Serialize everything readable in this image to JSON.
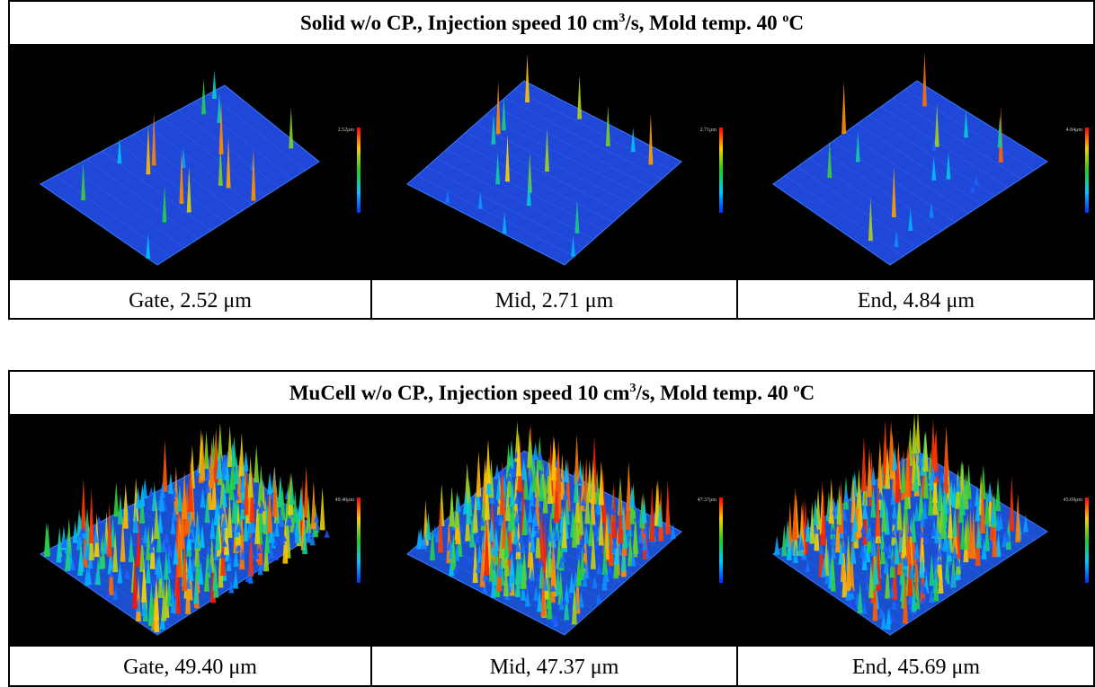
{
  "panels": [
    {
      "title": [
        "Solid w/o CP., Injection speed 10 cm",
        "3",
        "/s, Mold temp. 40  ",
        "o",
        "C"
      ],
      "images": [
        {
          "scale_label": "2.52μm",
          "caption": "Gate, 2.52 μm"
        },
        {
          "scale_label": "2.71μm",
          "caption": "Mid, 2.71 μm"
        },
        {
          "scale_label": "4.84μm",
          "caption": "End, 4.84 μm"
        }
      ]
    },
    {
      "title": [
        "MuCell w/o CP., Injection speed 10 cm",
        "3",
        "/s, Mold temp. 40 ",
        "o",
        "C"
      ],
      "images": [
        {
          "scale_label": "49.40μm",
          "caption": "Gate, 49.40 μm"
        },
        {
          "scale_label": "47.37μm",
          "caption": "Mid, 47.37 μm"
        },
        {
          "scale_label": "45.69μm",
          "caption": "End, 45.69 μm"
        }
      ]
    }
  ]
}
